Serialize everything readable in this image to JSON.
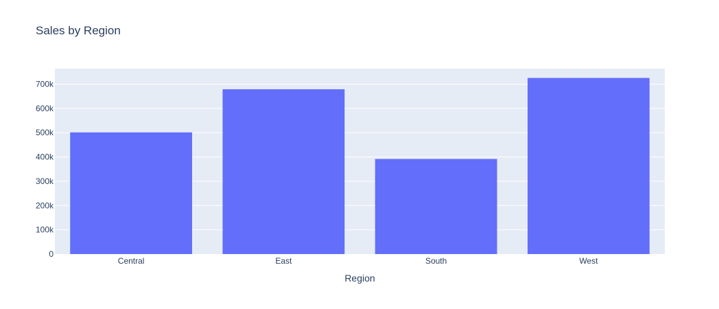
{
  "chart_data": {
    "type": "bar",
    "title": "Sales by Region",
    "xlabel": "Region",
    "ylabel": "",
    "categories": [
      "Central",
      "East",
      "South",
      "West"
    ],
    "values": [
      501240,
      678781,
      391722,
      725458
    ],
    "ylim": [
      0,
      763640
    ],
    "yticks": [
      0,
      100000,
      200000,
      300000,
      400000,
      500000,
      600000,
      700000
    ],
    "ytick_labels": [
      "0",
      "100k",
      "200k",
      "300k",
      "400k",
      "500k",
      "600k",
      "700k"
    ],
    "grid": true,
    "legend": "none",
    "colors": {
      "bar": "#636efa",
      "plot_background": "#e5ecf6",
      "grid": "#ffffff",
      "text": "#2a3f5f"
    }
  }
}
